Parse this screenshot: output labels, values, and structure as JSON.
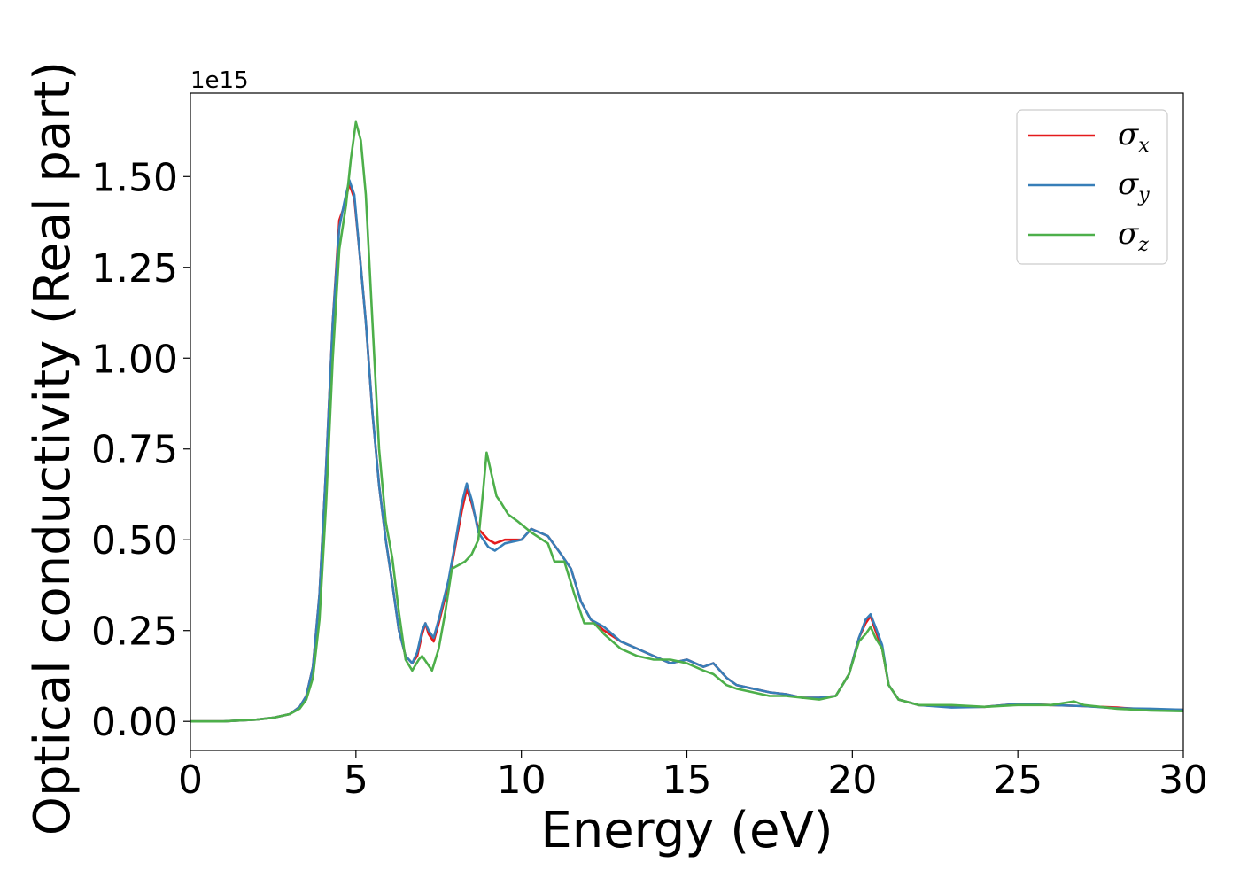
{
  "chart_data": {
    "type": "line",
    "xlabel": "Energy (eV)",
    "ylabel": "Optical conductivity (Real part)",
    "y_offset_label": "1e15",
    "xlim": [
      0,
      30
    ],
    "ylim": [
      -0.08,
      1.73
    ],
    "x_ticks": [
      0,
      5,
      10,
      15,
      20,
      25,
      30
    ],
    "x_tick_labels": [
      "0",
      "5",
      "10",
      "15",
      "20",
      "25",
      "30"
    ],
    "y_ticks": [
      0.0,
      0.25,
      0.5,
      0.75,
      1.0,
      1.25,
      1.5
    ],
    "y_tick_labels": [
      "0.00",
      "0.25",
      "0.50",
      "0.75",
      "1.00",
      "1.25",
      "1.50"
    ],
    "grid": false,
    "legend_position": "top-right",
    "series": [
      {
        "name": "σx",
        "symbol": "σ",
        "subscript": "x",
        "color": "#e41a1c",
        "points": [
          [
            0,
            0.0
          ],
          [
            1,
            0.0
          ],
          [
            2,
            0.005
          ],
          [
            2.5,
            0.01
          ],
          [
            3,
            0.02
          ],
          [
            3.3,
            0.04
          ],
          [
            3.5,
            0.07
          ],
          [
            3.7,
            0.15
          ],
          [
            3.9,
            0.35
          ],
          [
            4.1,
            0.7
          ],
          [
            4.3,
            1.1
          ],
          [
            4.5,
            1.38
          ],
          [
            4.65,
            1.42
          ],
          [
            4.8,
            1.48
          ],
          [
            4.95,
            1.44
          ],
          [
            5.1,
            1.3
          ],
          [
            5.3,
            1.1
          ],
          [
            5.5,
            0.85
          ],
          [
            5.7,
            0.65
          ],
          [
            5.9,
            0.5
          ],
          [
            6.1,
            0.38
          ],
          [
            6.3,
            0.25
          ],
          [
            6.5,
            0.18
          ],
          [
            6.7,
            0.16
          ],
          [
            6.85,
            0.18
          ],
          [
            7.0,
            0.24
          ],
          [
            7.1,
            0.27
          ],
          [
            7.2,
            0.24
          ],
          [
            7.35,
            0.22
          ],
          [
            7.5,
            0.27
          ],
          [
            7.8,
            0.38
          ],
          [
            8.0,
            0.48
          ],
          [
            8.2,
            0.58
          ],
          [
            8.35,
            0.64
          ],
          [
            8.5,
            0.6
          ],
          [
            8.7,
            0.53
          ],
          [
            9.0,
            0.5
          ],
          [
            9.2,
            0.49
          ],
          [
            9.5,
            0.5
          ],
          [
            10.0,
            0.5
          ],
          [
            10.3,
            0.53
          ],
          [
            10.8,
            0.51
          ],
          [
            11.2,
            0.46
          ],
          [
            11.5,
            0.42
          ],
          [
            11.8,
            0.33
          ],
          [
            12.1,
            0.28
          ],
          [
            12.5,
            0.25
          ],
          [
            13.0,
            0.22
          ],
          [
            13.5,
            0.2
          ],
          [
            14.0,
            0.18
          ],
          [
            14.5,
            0.16
          ],
          [
            15.0,
            0.17
          ],
          [
            15.5,
            0.15
          ],
          [
            15.8,
            0.16
          ],
          [
            16.2,
            0.12
          ],
          [
            16.5,
            0.1
          ],
          [
            17.0,
            0.09
          ],
          [
            17.5,
            0.08
          ],
          [
            18.0,
            0.075
          ],
          [
            18.5,
            0.065
          ],
          [
            19.0,
            0.065
          ],
          [
            19.5,
            0.07
          ],
          [
            19.9,
            0.13
          ],
          [
            20.2,
            0.23
          ],
          [
            20.4,
            0.27
          ],
          [
            20.55,
            0.29
          ],
          [
            20.7,
            0.25
          ],
          [
            20.9,
            0.2
          ],
          [
            21.1,
            0.1
          ],
          [
            21.4,
            0.06
          ],
          [
            22,
            0.045
          ],
          [
            23,
            0.04
          ],
          [
            24,
            0.04
          ],
          [
            25,
            0.048
          ],
          [
            26,
            0.045
          ],
          [
            27,
            0.042
          ],
          [
            28,
            0.038
          ],
          [
            29,
            0.032
          ],
          [
            30,
            0.032
          ]
        ]
      },
      {
        "name": "σy",
        "symbol": "σ",
        "subscript": "y",
        "color": "#377eb8",
        "points": [
          [
            0,
            0.0
          ],
          [
            1,
            0.0
          ],
          [
            2,
            0.005
          ],
          [
            2.5,
            0.01
          ],
          [
            3,
            0.02
          ],
          [
            3.3,
            0.04
          ],
          [
            3.5,
            0.07
          ],
          [
            3.7,
            0.15
          ],
          [
            3.9,
            0.35
          ],
          [
            4.1,
            0.7
          ],
          [
            4.3,
            1.1
          ],
          [
            4.5,
            1.36
          ],
          [
            4.65,
            1.43
          ],
          [
            4.8,
            1.49
          ],
          [
            4.95,
            1.45
          ],
          [
            5.1,
            1.3
          ],
          [
            5.3,
            1.1
          ],
          [
            5.5,
            0.85
          ],
          [
            5.7,
            0.65
          ],
          [
            5.9,
            0.5
          ],
          [
            6.1,
            0.38
          ],
          [
            6.3,
            0.25
          ],
          [
            6.5,
            0.18
          ],
          [
            6.7,
            0.16
          ],
          [
            6.85,
            0.19
          ],
          [
            7.0,
            0.25
          ],
          [
            7.1,
            0.27
          ],
          [
            7.2,
            0.25
          ],
          [
            7.35,
            0.23
          ],
          [
            7.5,
            0.28
          ],
          [
            7.8,
            0.39
          ],
          [
            8.0,
            0.49
          ],
          [
            8.2,
            0.6
          ],
          [
            8.35,
            0.655
          ],
          [
            8.5,
            0.61
          ],
          [
            8.7,
            0.52
          ],
          [
            9.0,
            0.48
          ],
          [
            9.2,
            0.47
          ],
          [
            9.5,
            0.49
          ],
          [
            10.0,
            0.5
          ],
          [
            10.3,
            0.53
          ],
          [
            10.8,
            0.51
          ],
          [
            11.2,
            0.46
          ],
          [
            11.5,
            0.42
          ],
          [
            11.8,
            0.33
          ],
          [
            12.1,
            0.28
          ],
          [
            12.5,
            0.26
          ],
          [
            13.0,
            0.22
          ],
          [
            13.5,
            0.2
          ],
          [
            14.0,
            0.18
          ],
          [
            14.5,
            0.16
          ],
          [
            15.0,
            0.17
          ],
          [
            15.5,
            0.15
          ],
          [
            15.8,
            0.16
          ],
          [
            16.2,
            0.12
          ],
          [
            16.5,
            0.1
          ],
          [
            17.0,
            0.09
          ],
          [
            17.5,
            0.08
          ],
          [
            18.0,
            0.075
          ],
          [
            18.5,
            0.065
          ],
          [
            19.0,
            0.065
          ],
          [
            19.5,
            0.07
          ],
          [
            19.9,
            0.13
          ],
          [
            20.2,
            0.23
          ],
          [
            20.4,
            0.28
          ],
          [
            20.55,
            0.295
          ],
          [
            20.7,
            0.26
          ],
          [
            20.9,
            0.21
          ],
          [
            21.1,
            0.1
          ],
          [
            21.4,
            0.06
          ],
          [
            22,
            0.045
          ],
          [
            23,
            0.038
          ],
          [
            24,
            0.04
          ],
          [
            25,
            0.048
          ],
          [
            26,
            0.045
          ],
          [
            27,
            0.042
          ],
          [
            28,
            0.036
          ],
          [
            29,
            0.035
          ],
          [
            30,
            0.032
          ]
        ]
      },
      {
        "name": "σz",
        "symbol": "σ",
        "subscript": "z",
        "color": "#4daf4a",
        "points": [
          [
            0,
            0.0
          ],
          [
            1,
            0.0
          ],
          [
            2,
            0.005
          ],
          [
            2.5,
            0.01
          ],
          [
            3,
            0.02
          ],
          [
            3.3,
            0.035
          ],
          [
            3.5,
            0.06
          ],
          [
            3.7,
            0.12
          ],
          [
            3.9,
            0.28
          ],
          [
            4.1,
            0.6
          ],
          [
            4.3,
            1.0
          ],
          [
            4.5,
            1.3
          ],
          [
            4.7,
            1.42
          ],
          [
            4.85,
            1.55
          ],
          [
            5.0,
            1.65
          ],
          [
            5.15,
            1.6
          ],
          [
            5.3,
            1.45
          ],
          [
            5.5,
            1.1
          ],
          [
            5.7,
            0.75
          ],
          [
            5.9,
            0.55
          ],
          [
            6.1,
            0.45
          ],
          [
            6.3,
            0.3
          ],
          [
            6.5,
            0.17
          ],
          [
            6.7,
            0.14
          ],
          [
            6.9,
            0.17
          ],
          [
            7.0,
            0.18
          ],
          [
            7.15,
            0.16
          ],
          [
            7.3,
            0.14
          ],
          [
            7.5,
            0.2
          ],
          [
            7.7,
            0.3
          ],
          [
            7.9,
            0.42
          ],
          [
            8.1,
            0.43
          ],
          [
            8.3,
            0.44
          ],
          [
            8.5,
            0.46
          ],
          [
            8.7,
            0.5
          ],
          [
            8.85,
            0.64
          ],
          [
            8.95,
            0.74
          ],
          [
            9.1,
            0.68
          ],
          [
            9.25,
            0.62
          ],
          [
            9.4,
            0.6
          ],
          [
            9.6,
            0.57
          ],
          [
            9.9,
            0.55
          ],
          [
            10.3,
            0.52
          ],
          [
            10.8,
            0.49
          ],
          [
            11.0,
            0.44
          ],
          [
            11.3,
            0.44
          ],
          [
            11.6,
            0.35
          ],
          [
            11.9,
            0.27
          ],
          [
            12.2,
            0.27
          ],
          [
            12.5,
            0.24
          ],
          [
            13.0,
            0.2
          ],
          [
            13.5,
            0.18
          ],
          [
            14.0,
            0.17
          ],
          [
            14.5,
            0.17
          ],
          [
            15.0,
            0.16
          ],
          [
            15.5,
            0.14
          ],
          [
            15.8,
            0.13
          ],
          [
            16.2,
            0.1
          ],
          [
            16.5,
            0.09
          ],
          [
            17.0,
            0.08
          ],
          [
            17.5,
            0.07
          ],
          [
            18.0,
            0.07
          ],
          [
            18.5,
            0.065
          ],
          [
            19.0,
            0.06
          ],
          [
            19.5,
            0.07
          ],
          [
            19.9,
            0.13
          ],
          [
            20.2,
            0.22
          ],
          [
            20.4,
            0.24
          ],
          [
            20.55,
            0.26
          ],
          [
            20.7,
            0.23
          ],
          [
            20.9,
            0.2
          ],
          [
            21.1,
            0.1
          ],
          [
            21.4,
            0.06
          ],
          [
            22,
            0.045
          ],
          [
            23,
            0.045
          ],
          [
            24,
            0.04
          ],
          [
            25,
            0.045
          ],
          [
            26,
            0.045
          ],
          [
            26.7,
            0.055
          ],
          [
            27,
            0.045
          ],
          [
            28,
            0.035
          ],
          [
            29,
            0.03
          ],
          [
            30,
            0.028
          ]
        ]
      }
    ]
  }
}
